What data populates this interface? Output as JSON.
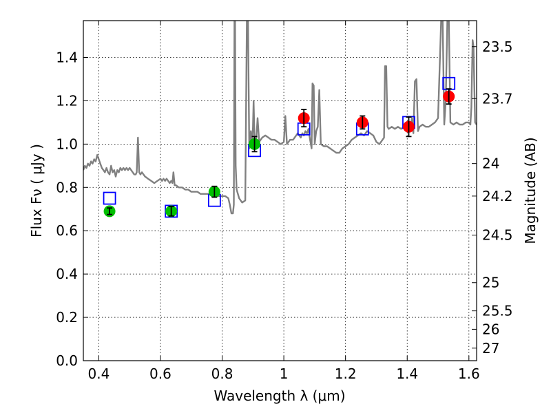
{
  "chart_data": {
    "type": "scatter",
    "xlabel": "Wavelength  λ (μm)",
    "ylabel": "Flux  Fν  ( μJy )",
    "ylabel_right": "Magnitude (AB)",
    "xlim": [
      0.35,
      1.625
    ],
    "ylim": [
      0.0,
      1.57
    ],
    "x_ticks": [
      0.4,
      0.6,
      0.8,
      1.0,
      1.2,
      1.4,
      1.6
    ],
    "x_tick_labels": [
      "0.4",
      "0.6",
      "0.8",
      "1",
      "1.2",
      "1.4",
      "1.6"
    ],
    "y_ticks": [
      0.0,
      0.2,
      0.4,
      0.6,
      0.8,
      1.0,
      1.2,
      1.4
    ],
    "y_tick_labels": [
      "0.0",
      "0.2",
      "0.4",
      "0.6",
      "0.8",
      "1.0",
      "1.2",
      "1.4"
    ],
    "right_ticks": [
      {
        "label": "23.5",
        "flux": 1.45
      },
      {
        "label": "23.7",
        "flux": 1.21
      },
      {
        "label": "24",
        "flux": 0.91
      },
      {
        "label": "24.2",
        "flux": 0.76
      },
      {
        "label": "24.5",
        "flux": 0.58
      },
      {
        "label": "25",
        "flux": 0.36
      },
      {
        "label": "25.5",
        "flux": 0.23
      },
      {
        "label": "26",
        "flux": 0.145
      },
      {
        "label": "27",
        "flux": 0.058
      }
    ],
    "grid": true,
    "series": [
      {
        "kind": "model_spectrum",
        "color": "#808080",
        "points": [
          [
            0.35,
            0.88
          ],
          [
            0.355,
            0.9
          ],
          [
            0.36,
            0.89
          ],
          [
            0.365,
            0.91
          ],
          [
            0.37,
            0.9
          ],
          [
            0.375,
            0.92
          ],
          [
            0.38,
            0.91
          ],
          [
            0.385,
            0.93
          ],
          [
            0.39,
            0.92
          ],
          [
            0.395,
            0.95
          ],
          [
            0.4,
            0.93
          ],
          [
            0.405,
            0.91
          ],
          [
            0.41,
            0.89
          ],
          [
            0.415,
            0.88
          ],
          [
            0.42,
            0.87
          ],
          [
            0.425,
            0.89
          ],
          [
            0.43,
            0.87
          ],
          [
            0.435,
            0.86
          ],
          [
            0.44,
            0.9
          ],
          [
            0.445,
            0.87
          ],
          [
            0.45,
            0.88
          ],
          [
            0.455,
            0.85
          ],
          [
            0.46,
            0.88
          ],
          [
            0.465,
            0.87
          ],
          [
            0.47,
            0.89
          ],
          [
            0.475,
            0.88
          ],
          [
            0.48,
            0.89
          ],
          [
            0.485,
            0.88
          ],
          [
            0.49,
            0.89
          ],
          [
            0.495,
            0.88
          ],
          [
            0.5,
            0.89
          ],
          [
            0.505,
            0.88
          ],
          [
            0.51,
            0.87
          ],
          [
            0.515,
            0.86
          ],
          [
            0.52,
            0.86
          ],
          [
            0.523,
            0.87
          ],
          [
            0.527,
            1.03
          ],
          [
            0.531,
            0.87
          ],
          [
            0.535,
            0.86
          ],
          [
            0.54,
            0.87
          ],
          [
            0.545,
            0.86
          ],
          [
            0.55,
            0.85
          ],
          [
            0.56,
            0.84
          ],
          [
            0.57,
            0.83
          ],
          [
            0.58,
            0.82
          ],
          [
            0.59,
            0.83
          ],
          [
            0.6,
            0.84
          ],
          [
            0.605,
            0.83
          ],
          [
            0.61,
            0.84
          ],
          [
            0.615,
            0.83
          ],
          [
            0.62,
            0.84
          ],
          [
            0.625,
            0.83
          ],
          [
            0.63,
            0.82
          ],
          [
            0.635,
            0.83
          ],
          [
            0.639,
            0.82
          ],
          [
            0.642,
            0.87
          ],
          [
            0.646,
            0.81
          ],
          [
            0.65,
            0.81
          ],
          [
            0.66,
            0.8
          ],
          [
            0.67,
            0.8
          ],
          [
            0.68,
            0.79
          ],
          [
            0.69,
            0.79
          ],
          [
            0.7,
            0.78
          ],
          [
            0.71,
            0.78
          ],
          [
            0.72,
            0.78
          ],
          [
            0.73,
            0.77
          ],
          [
            0.74,
            0.77
          ],
          [
            0.75,
            0.77
          ],
          [
            0.76,
            0.77
          ],
          [
            0.77,
            0.77
          ],
          [
            0.78,
            0.76
          ],
          [
            0.79,
            0.76
          ],
          [
            0.8,
            0.76
          ],
          [
            0.81,
            0.76
          ],
          [
            0.82,
            0.75
          ],
          [
            0.825,
            0.72
          ],
          [
            0.83,
            0.68
          ],
          [
            0.835,
            0.68
          ],
          [
            0.838,
            0.72
          ],
          [
            0.84,
            1.57
          ],
          [
            0.842,
            1.57
          ],
          [
            0.844,
            0.9
          ],
          [
            0.847,
            0.79
          ],
          [
            0.855,
            0.75
          ],
          [
            0.865,
            0.73
          ],
          [
            0.875,
            0.74
          ],
          [
            0.88,
            1.57
          ],
          [
            0.884,
            1.57
          ],
          [
            0.888,
            0.98
          ],
          [
            0.893,
            1.06
          ],
          [
            0.897,
            1.0
          ],
          [
            0.9,
            1.08
          ],
          [
            0.902,
            1.2
          ],
          [
            0.905,
            1.02
          ],
          [
            0.91,
            1.01
          ],
          [
            0.915,
            1.12
          ],
          [
            0.92,
            1.01
          ],
          [
            0.93,
            1.03
          ],
          [
            0.94,
            1.04
          ],
          [
            0.95,
            1.03
          ],
          [
            0.96,
            1.02
          ],
          [
            0.97,
            1.02
          ],
          [
            0.98,
            1.01
          ],
          [
            0.99,
            1.0
          ],
          [
            1.0,
            1.01
          ],
          [
            1.005,
            1.13
          ],
          [
            1.01,
            1.0
          ],
          [
            1.02,
            1.02
          ],
          [
            1.03,
            1.02
          ],
          [
            1.04,
            1.04
          ],
          [
            1.045,
            1.05
          ],
          [
            1.05,
            1.04
          ],
          [
            1.055,
            1.03
          ],
          [
            1.06,
            1.05
          ],
          [
            1.065,
            1.04
          ],
          [
            1.07,
            1.06
          ],
          [
            1.075,
            1.05
          ],
          [
            1.08,
            1.07
          ],
          [
            1.085,
            1.02
          ],
          [
            1.09,
            0.98
          ],
          [
            1.093,
            1.28
          ],
          [
            1.097,
            1.27
          ],
          [
            1.1,
            1.0
          ],
          [
            1.105,
            1.06
          ],
          [
            1.11,
            1.08
          ],
          [
            1.115,
            1.25
          ],
          [
            1.12,
            1.0
          ],
          [
            1.13,
            0.99
          ],
          [
            1.14,
            0.99
          ],
          [
            1.15,
            0.98
          ],
          [
            1.16,
            0.97
          ],
          [
            1.17,
            0.96
          ],
          [
            1.18,
            0.96
          ],
          [
            1.19,
            0.98
          ],
          [
            1.2,
            0.99
          ],
          [
            1.21,
            1.0
          ],
          [
            1.22,
            1.02
          ],
          [
            1.23,
            1.03
          ],
          [
            1.24,
            1.04
          ],
          [
            1.25,
            1.05
          ],
          [
            1.26,
            1.04
          ],
          [
            1.27,
            1.06
          ],
          [
            1.28,
            1.05
          ],
          [
            1.29,
            1.04
          ],
          [
            1.3,
            1.01
          ],
          [
            1.31,
            1.0
          ],
          [
            1.32,
            1.02
          ],
          [
            1.325,
            1.03
          ],
          [
            1.328,
            1.36
          ],
          [
            1.332,
            1.36
          ],
          [
            1.336,
            1.08
          ],
          [
            1.34,
            1.07
          ],
          [
            1.35,
            1.08
          ],
          [
            1.36,
            1.07
          ],
          [
            1.37,
            1.08
          ],
          [
            1.38,
            1.07
          ],
          [
            1.39,
            1.08
          ],
          [
            1.4,
            1.06
          ],
          [
            1.41,
            1.06
          ],
          [
            1.415,
            1.12
          ],
          [
            1.42,
            1.05
          ],
          [
            1.425,
            1.29
          ],
          [
            1.43,
            1.3
          ],
          [
            1.435,
            1.06
          ],
          [
            1.44,
            1.08
          ],
          [
            1.45,
            1.09
          ],
          [
            1.46,
            1.08
          ],
          [
            1.47,
            1.08
          ],
          [
            1.48,
            1.09
          ],
          [
            1.49,
            1.1
          ],
          [
            1.5,
            1.12
          ],
          [
            1.505,
            1.35
          ],
          [
            1.51,
            1.57
          ],
          [
            1.515,
            1.57
          ],
          [
            1.52,
            1.09
          ],
          [
            1.525,
            1.2
          ],
          [
            1.53,
            1.57
          ],
          [
            1.535,
            1.57
          ],
          [
            1.54,
            1.1
          ],
          [
            1.55,
            1.09
          ],
          [
            1.56,
            1.1
          ],
          [
            1.57,
            1.09
          ],
          [
            1.58,
            1.09
          ],
          [
            1.59,
            1.1
          ],
          [
            1.6,
            1.1
          ],
          [
            1.605,
            1.09
          ],
          [
            1.608,
            1.17
          ],
          [
            1.612,
            1.48
          ],
          [
            1.615,
            1.45
          ],
          [
            1.62,
            1.1
          ],
          [
            1.625,
            1.09
          ]
        ]
      },
      {
        "kind": "model_photometry",
        "marker": "open-square",
        "color": "#0000ff",
        "points": [
          [
            0.435,
            0.75
          ],
          [
            0.635,
            0.69
          ],
          [
            0.775,
            0.74
          ],
          [
            0.905,
            0.97
          ],
          [
            1.065,
            1.07
          ],
          [
            1.255,
            1.07
          ],
          [
            1.405,
            1.1
          ],
          [
            1.535,
            1.28
          ]
        ]
      },
      {
        "kind": "observed",
        "marker": "filled-circle",
        "color": "#00c000",
        "points": [
          {
            "x": 0.435,
            "y": 0.69,
            "err": 0.015
          },
          {
            "x": 0.635,
            "y": 0.69,
            "err": 0.022
          },
          {
            "x": 0.775,
            "y": 0.78,
            "err": 0.025
          },
          {
            "x": 0.905,
            "y": 1.0,
            "err": 0.035
          }
        ]
      },
      {
        "kind": "observed",
        "marker": "filled-circle",
        "color": "#ff0000",
        "points": [
          {
            "x": 1.065,
            "y": 1.12,
            "err": 0.04
          },
          {
            "x": 1.255,
            "y": 1.1,
            "err": 0.03
          },
          {
            "x": 1.405,
            "y": 1.08,
            "err": 0.045
          },
          {
            "x": 1.535,
            "y": 1.22,
            "err": 0.035
          }
        ]
      }
    ]
  }
}
